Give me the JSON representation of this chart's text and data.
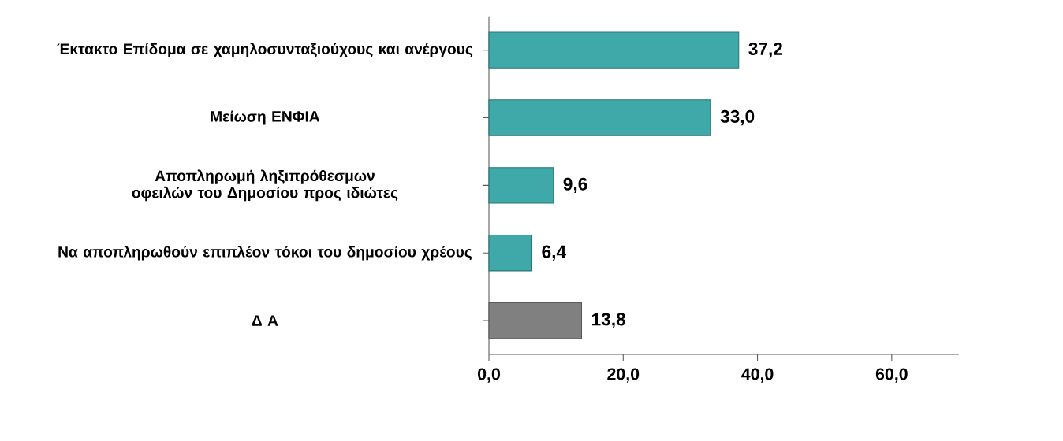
{
  "chart_data": {
    "type": "bar",
    "orientation": "horizontal",
    "categories": [
      "Έκτακτο Επίδομα σε χαμηλοσυνταξιούχους και ανέργους",
      "Μείωση ΕΝΦΙΑ",
      "Αποπληρωμή ληξιπρόθεσμων οφειλών του Δημοσίου προς ιδιώτες",
      "Να αποπληρωθούν επιπλέον τόκοι του δημοσίου χρέους",
      "Δ Α"
    ],
    "values": [
      37.2,
      33.0,
      9.6,
      6.4,
      13.8
    ],
    "value_labels": [
      "37,2",
      "33,0",
      "9,6",
      "6,4",
      "13,8"
    ],
    "colors": [
      "#3fa9a9",
      "#3fa9a9",
      "#3fa9a9",
      "#3fa9a9",
      "#808080"
    ],
    "xlim": [
      0,
      70
    ],
    "xticks": [
      {
        "value": 0,
        "label": "0,0"
      },
      {
        "value": 20,
        "label": "20,0"
      },
      {
        "value": 40,
        "label": "40,0"
      },
      {
        "value": 60,
        "label": "60,0"
      }
    ],
    "grid": false
  }
}
